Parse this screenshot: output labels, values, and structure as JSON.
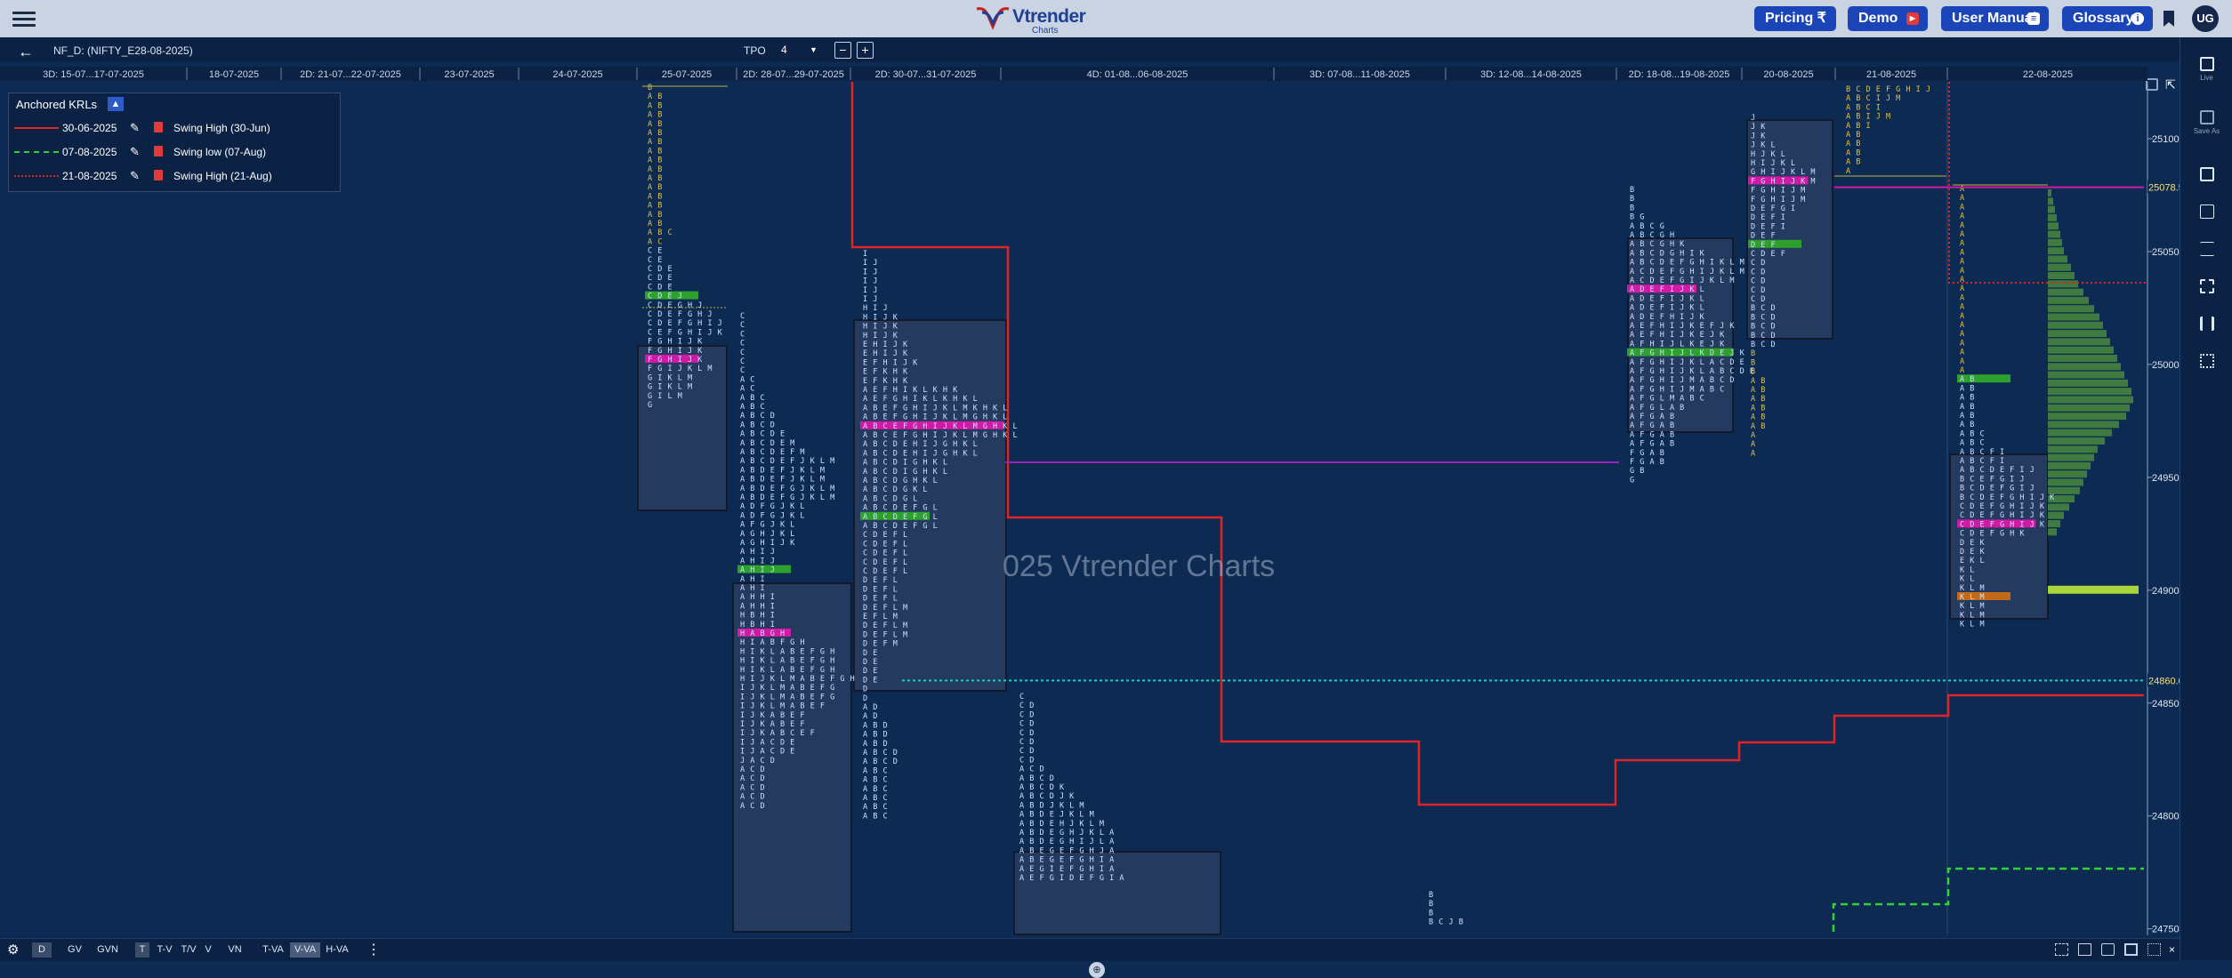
{
  "brand": {
    "name": "Vtrender",
    "sub": "Charts",
    "colors": {
      "blue": "#1e3f95",
      "red": "#c8201e"
    }
  },
  "nav": {
    "pricing": "Pricing ₹",
    "demo": "Demo",
    "user_manual": "User Manual",
    "glossary": "Glossary",
    "avatar": "UG"
  },
  "toolbar": {
    "symbol": "NF_D: (NIFTY_E28-08-2025)",
    "tpo_label": "TPO",
    "tpo_value": "4"
  },
  "session_labels": [
    "3D: 15-07...17-07-2025",
    "18-07-2025",
    "2D: 21-07...22-07-2025",
    "23-07-2025",
    "24-07-2025",
    "25-07-2025",
    "2D: 28-07...29-07-2025",
    "2D: 30-07...31-07-2025",
    "4D: 01-08...06-08-2025",
    "3D: 07-08...11-08-2025",
    "3D: 12-08...14-08-2025",
    "2D: 18-08...19-08-2025",
    "20-08-2025",
    "21-08-2025",
    "22-08-2025"
  ],
  "price_axis": {
    "ticks": [
      "25100",
      "25050",
      "25000",
      "24950",
      "24900",
      "24850",
      "24800",
      "24750"
    ],
    "marker_upper": "25078.50",
    "marker_lower": "24860.00"
  },
  "watermark": "025 Vtrender Charts",
  "krl": {
    "title": "Anchored KRLs",
    "rows": [
      {
        "date": "30-06-2025",
        "name": "Swing High (30-Jun)",
        "color": "#e02424",
        "style": "solid"
      },
      {
        "date": "07-08-2025",
        "name": "Swing low (07-Aug)",
        "color": "#34d134",
        "style": "dashed"
      },
      {
        "date": "21-08-2025",
        "name": "Swing High (21-Aug)",
        "color": "#e02424",
        "style": "dotted"
      }
    ]
  },
  "rail": {
    "live": "Live",
    "save_as": "Save As"
  },
  "bottom": {
    "d": "D",
    "gv": "GV",
    "gvn": "GVN",
    "t": "T",
    "tv": "T-V",
    "tpv": "T/V",
    "v": "V",
    "vn": "VN",
    "tva": "T-VA",
    "vva": "V-VA",
    "hva": "H-VA"
  },
  "letters": {
    "p25": [
      "B",
      "A B",
      "A B",
      "A B",
      "A B",
      "A B",
      "A B",
      "A B",
      "A B",
      "A B",
      "A B",
      "A B",
      "A B",
      "A B",
      "A B",
      "A B",
      "A B C",
      "A C",
      "C E",
      "C E",
      "C D E",
      "C D E",
      "C D E",
      "C D E J",
      "C D E G H J",
      "C D E F G H J",
      "C D E F G H I J",
      "C E F G H I J K",
      "F G H I J K",
      "F G H I J K",
      "F G H I J K",
      "F G I J K L M",
      "G I K L M",
      "G I K L M",
      "G I L M",
      "G"
    ],
    "p2829": [
      "C",
      "C",
      "C",
      "C",
      "C",
      "C",
      "C",
      "A C",
      "A C",
      "A B C",
      "A B C",
      "A B C D",
      "A B C D",
      "A B C D E",
      "A B C D E M",
      "A B C D E F M",
      "A B C D E F J K L M",
      "A B D E F J K L M",
      "A B D E F J K L M",
      "A B D E F G J K L M",
      "A B D E F G J K L M",
      "A D F G J K L",
      "A D F G J K L",
      "A F G J K L",
      "A G H J K L",
      "A G H I J K",
      "A H I J",
      "A H I J",
      "A H I J",
      "A H I",
      "A H I",
      "A H H I",
      "A H H I",
      "H B H I",
      "H B H I",
      "H A B G H",
      "H I A B F G H",
      "H I K L A B E F G H",
      "H I K L A B E F G H",
      "H I K L A B E F G H",
      "H I J K L M A B E F G H",
      "I J K L M A B E F G",
      "I J K L M A B E F G",
      "I J K L M A B E F",
      "I J K A B E F",
      "I J K A B E F",
      "I J K A B C E F",
      "I J A C D E",
      "I J A C D E",
      "J A C D",
      "A C D",
      "A C D",
      "A C D",
      "A C D",
      "A C D"
    ],
    "p3031": [
      "I",
      "I J",
      "I J",
      "I J",
      "I J",
      "I J",
      "H I J",
      "H I J K",
      "H I J K",
      "H I J K",
      "E H I J K",
      "E H I J K",
      "E F H I J K",
      "E F K H K",
      "E F K H K",
      "A E F H I K L K H K",
      "A E F G H I K L K H K L",
      "A B E F G H I J K L M K H K L",
      "A B E F G H I J K L M G H K L",
      "A B C E F G H I J K L M G H K L",
      "A B C E F G H I J K L M G H K L",
      "A B C D E H I J G H K L",
      "A B C D E H I J G H K L",
      "A B C D I G H K L",
      "A B C D I G H K L",
      "A B C D G H K L",
      "A B C D G K L",
      "A B C D G L",
      "A B C D E F G L",
      "A B C D E F G L",
      "A B C D E F G L",
      "C D E F L",
      "C D E F L",
      "C D E F L",
      "C D E F L",
      "C D E F L",
      "D E F L",
      "D E F L",
      "D E F L",
      "D E F L M",
      "E F L M",
      "D E F L M",
      "D E F L M",
      "D E F M",
      "D E",
      "D E",
      "D E",
      "D E",
      "D",
      "D",
      "A D",
      "A D",
      "A B D",
      "A B D",
      "A B D",
      "A B C D",
      "A B C D",
      "A B C",
      "A B C",
      "A B C",
      "A B C",
      "A B C",
      "A B C"
    ],
    "p0108": [
      "C",
      "C D",
      "C D",
      "C D",
      "C D",
      "C D",
      "C D",
      "C D",
      "A C D",
      "A B C D",
      "A B C D K",
      "A B C D J K",
      "A B D J K L M",
      "A B D E J K L M",
      "A B D E H J K L M",
      "A B D E G H J K L A",
      "A B D E G H I J L A",
      "A B E G E F G H J A",
      "A B E G E F G H I A",
      "A E G I E F G H I A",
      "A E F G I D E F G I A"
    ],
    "p1208": [
      "B",
      "B",
      "B",
      "B C J B"
    ],
    "p1819": [
      "B",
      "B",
      "B",
      "B G",
      "A B C G",
      "A B C G H",
      "A B C G H K",
      "A B C D G H I K",
      "A B C D E F G H I K L M",
      "A C D E F G H I J K L M",
      "A C D E F G I J K L M",
      "A D E F I J K L",
      "A D E F I J K L",
      "A D E F I J K L",
      "A D E F H I J K",
      "A E F H I J K E F J K",
      "A E F H I J K E J K",
      "A F H I J L K E J K",
      "A F G H I J L K D E J K",
      "A F G H I J K L A C D E",
      "A F G H I J K L A B C D E",
      "A F G H I J M A B C D",
      "A F G H I J M A B C",
      "A F G L M A B C",
      "A F G L A B",
      "A F G A B",
      "A F G A B",
      "A F G A B",
      "A F G A B",
      "F G A B",
      "F G A B",
      "G B",
      "G"
    ],
    "p20": [
      "J",
      "J K",
      "J K",
      "J K L",
      "H J K L",
      "H I J K L",
      "G H I J K L M",
      "F G H I J K M",
      "F G H I J M",
      "F G H I J M",
      "D E F G I",
      "D E F I",
      "D E F I",
      "D E F",
      "D E F",
      "C D E F",
      "C D",
      "C D",
      "C D",
      "C D",
      "C D",
      "B C D",
      "B C D",
      "B C D",
      "B C D",
      "B C D",
      "B",
      "B",
      "B",
      "A B",
      "A B",
      "A B",
      "A B",
      "A B",
      "A B",
      "A",
      "A",
      "A"
    ],
    "p21": [
      "B C D E F G H I J",
      "A B C I J M",
      "A B C I",
      "A B I J M",
      "A B I",
      "A B",
      "A B",
      "A B",
      "A B",
      "A"
    ],
    "p22": [
      "A",
      "A",
      "A",
      "A",
      "A",
      "A",
      "A",
      "A",
      "A",
      "A",
      "A",
      "A",
      "A",
      "A",
      "A",
      "A",
      "A",
      "A",
      "A",
      "A",
      "A",
      "A B",
      "A B",
      "A B",
      "A B",
      "A B",
      "A B",
      "A B C",
      "A B C",
      "A B C F I",
      "A B C F I",
      "A B C D E F I J",
      "B C E F G I J",
      "B C D E F G I J",
      "B C D E F G H I J K",
      "C D E F G H I J K",
      "C D E F G H I J K",
      "C D E F G H I J K",
      "C D E F G H K",
      "D E K",
      "D E K",
      "E K L",
      "K L",
      "K L",
      "K L M",
      "K L M",
      "K L M",
      "K L M",
      "K L M"
    ]
  }
}
